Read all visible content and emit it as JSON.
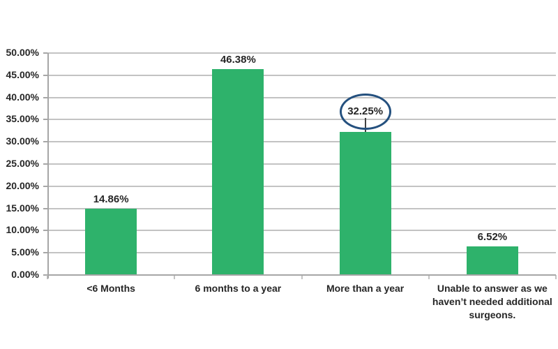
{
  "chart_data": {
    "type": "bar",
    "title": "",
    "xlabel": "",
    "ylabel": "",
    "categories": [
      "<6 Months",
      "6 months to a year",
      "More than a year",
      "Unable to answer as we haven’t needed additional surgeons."
    ],
    "values": [
      14.86,
      46.38,
      32.25,
      6.52
    ],
    "value_labels": [
      "14.86%",
      "46.38%",
      "32.25%",
      "6.52%"
    ],
    "ylim": [
      0,
      50
    ],
    "ytick_step": 5,
    "ytick_labels": [
      "0.00%",
      "5.00%",
      "10.00%",
      "15.00%",
      "20.00%",
      "25.00%",
      "30.00%",
      "35.00%",
      "40.00%",
      "45.00%",
      "50.00%"
    ],
    "grid": true,
    "legend": false,
    "colors": {
      "bar": "#2EB26B",
      "gridline": "#C3C3C3",
      "axis": "#A6A6A6",
      "text": "#262626",
      "annotation": "#24507E"
    },
    "annotation": {
      "shape": "ellipse",
      "category_index": 2,
      "label": "32.25%"
    }
  }
}
